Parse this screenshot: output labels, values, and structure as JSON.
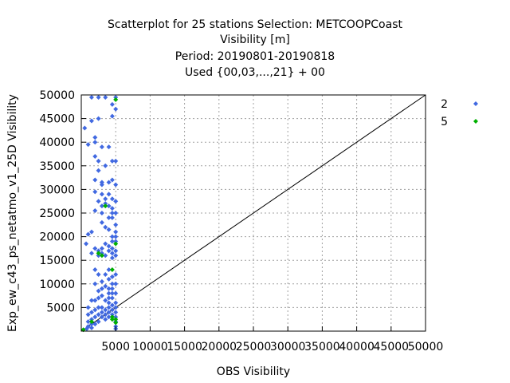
{
  "chart_data": {
    "type": "scatter",
    "title_lines": [
      "Scatterplot for   25 stations Selection: METCOOPCoast",
      "Visibility [m]",
      "Period: 20190801-20190818",
      "Used {00,03,...,21} + 00"
    ],
    "xlabel": "OBS Visibility",
    "ylabel": "Exp_ew_c43_ps_netatmo_v1_25D Visibility",
    "xlim": [
      0,
      50000
    ],
    "ylim": [
      0,
      50000
    ],
    "x_ticks": [
      5000,
      10000,
      15000,
      20000,
      25000,
      30000,
      35000,
      40000,
      45000,
      50000
    ],
    "y_ticks": [
      5000,
      10000,
      15000,
      20000,
      25000,
      30000,
      35000,
      40000,
      45000,
      50000
    ],
    "x_tick_labels": [
      "5000",
      "10000",
      "15000",
      "20000",
      "25000",
      "30000",
      "35000",
      "40000",
      "45000",
      "50000"
    ],
    "y_tick_labels": [
      "5000",
      "10000",
      "15000",
      "20000",
      "25000",
      "30000",
      "35000",
      "40000",
      "45000",
      "50000"
    ],
    "grid": true,
    "diagonal": true,
    "legend_position": "right",
    "series": [
      {
        "name": "2",
        "color": "#4169e1",
        "marker": "diamond",
        "points": [
          [
            500,
            43000
          ],
          [
            700,
            18500
          ],
          [
            1000,
            39500
          ],
          [
            1000,
            20500
          ],
          [
            1000,
            5000
          ],
          [
            1000,
            3500
          ],
          [
            1000,
            2000
          ],
          [
            1000,
            1000
          ],
          [
            800,
            500
          ],
          [
            1500,
            49500
          ],
          [
            1500,
            44500
          ],
          [
            1500,
            21000
          ],
          [
            1500,
            16500
          ],
          [
            1500,
            6500
          ],
          [
            1500,
            4000
          ],
          [
            1500,
            2500
          ],
          [
            1500,
            1500
          ],
          [
            1500,
            700
          ],
          [
            2000,
            41000
          ],
          [
            2000,
            40000
          ],
          [
            2000,
            37000
          ],
          [
            2000,
            32000
          ],
          [
            2000,
            29500
          ],
          [
            2000,
            25500
          ],
          [
            2000,
            17500
          ],
          [
            2000,
            13000
          ],
          [
            2000,
            10000
          ],
          [
            2000,
            6500
          ],
          [
            2000,
            4500
          ],
          [
            2000,
            3000
          ],
          [
            2000,
            1500
          ],
          [
            2500,
            49500
          ],
          [
            2500,
            45000
          ],
          [
            2500,
            36000
          ],
          [
            2500,
            34000
          ],
          [
            2500,
            27500
          ],
          [
            2500,
            17000
          ],
          [
            2500,
            16000
          ],
          [
            2500,
            12000
          ],
          [
            2500,
            8500
          ],
          [
            2500,
            7000
          ],
          [
            2500,
            5000
          ],
          [
            2500,
            3500
          ],
          [
            2500,
            2000
          ],
          [
            3000,
            39000
          ],
          [
            3000,
            31500
          ],
          [
            3000,
            31000
          ],
          [
            3000,
            29000
          ],
          [
            3000,
            26500
          ],
          [
            3000,
            25000
          ],
          [
            3000,
            23000
          ],
          [
            3000,
            17500
          ],
          [
            3000,
            16500
          ],
          [
            3000,
            10500
          ],
          [
            3000,
            9000
          ],
          [
            3000,
            7500
          ],
          [
            3000,
            5000
          ],
          [
            3000,
            4000
          ],
          [
            3000,
            3000
          ],
          [
            3500,
            49500
          ],
          [
            3500,
            35000
          ],
          [
            3500,
            28000
          ],
          [
            3500,
            27000
          ],
          [
            3500,
            22000
          ],
          [
            3500,
            18500
          ],
          [
            3500,
            16000
          ],
          [
            3500,
            12000
          ],
          [
            3500,
            9500
          ],
          [
            3500,
            6500
          ],
          [
            3500,
            4500
          ],
          [
            3500,
            3500
          ],
          [
            3500,
            2500
          ],
          [
            4000,
            39000
          ],
          [
            4000,
            31500
          ],
          [
            4000,
            29000
          ],
          [
            4000,
            26500
          ],
          [
            4000,
            24000
          ],
          [
            4000,
            21500
          ],
          [
            4000,
            18000
          ],
          [
            4000,
            17000
          ],
          [
            4000,
            13000
          ],
          [
            4000,
            11000
          ],
          [
            4000,
            9000
          ],
          [
            4000,
            8000
          ],
          [
            4000,
            7000
          ],
          [
            4000,
            6000
          ],
          [
            4000,
            5000
          ],
          [
            4000,
            4000
          ],
          [
            4000,
            3000
          ],
          [
            4500,
            48000
          ],
          [
            4500,
            45500
          ],
          [
            4500,
            36000
          ],
          [
            4500,
            32000
          ],
          [
            4500,
            28000
          ],
          [
            4500,
            26000
          ],
          [
            4500,
            25000
          ],
          [
            4500,
            24000
          ],
          [
            4500,
            20000
          ],
          [
            4500,
            19000
          ],
          [
            4500,
            17500
          ],
          [
            4500,
            16500
          ],
          [
            4500,
            15500
          ],
          [
            4500,
            11500
          ],
          [
            4500,
            10000
          ],
          [
            4500,
            9000
          ],
          [
            4500,
            8000
          ],
          [
            4500,
            7000
          ],
          [
            4500,
            5500
          ],
          [
            4500,
            4500
          ],
          [
            4500,
            3500
          ],
          [
            5000,
            49500
          ],
          [
            5000,
            47000
          ],
          [
            5000,
            36000
          ],
          [
            5000,
            31000
          ],
          [
            5000,
            27500
          ],
          [
            5000,
            25000
          ],
          [
            5000,
            22500
          ],
          [
            5000,
            21000
          ],
          [
            5000,
            20000
          ],
          [
            5000,
            19000
          ],
          [
            5000,
            17000
          ],
          [
            5000,
            16000
          ],
          [
            5000,
            12000
          ],
          [
            5000,
            10000
          ],
          [
            5000,
            8000
          ],
          [
            5000,
            6000
          ],
          [
            5000,
            5000
          ],
          [
            5000,
            4000
          ],
          [
            5000,
            3000
          ],
          [
            5000,
            2000
          ],
          [
            5000,
            1000
          ],
          [
            5000,
            500
          ]
        ]
      },
      {
        "name": "5",
        "color": "#00b000",
        "marker": "diamond",
        "points": [
          [
            300,
            300
          ],
          [
            1500,
            2000
          ],
          [
            2500,
            16500
          ],
          [
            3000,
            16000
          ],
          [
            3500,
            26500
          ],
          [
            4500,
            13000
          ],
          [
            4500,
            3000
          ],
          [
            4500,
            2500
          ],
          [
            5000,
            49000
          ],
          [
            5000,
            18500
          ],
          [
            5000,
            2500
          ],
          [
            5000,
            1800
          ]
        ]
      }
    ]
  }
}
